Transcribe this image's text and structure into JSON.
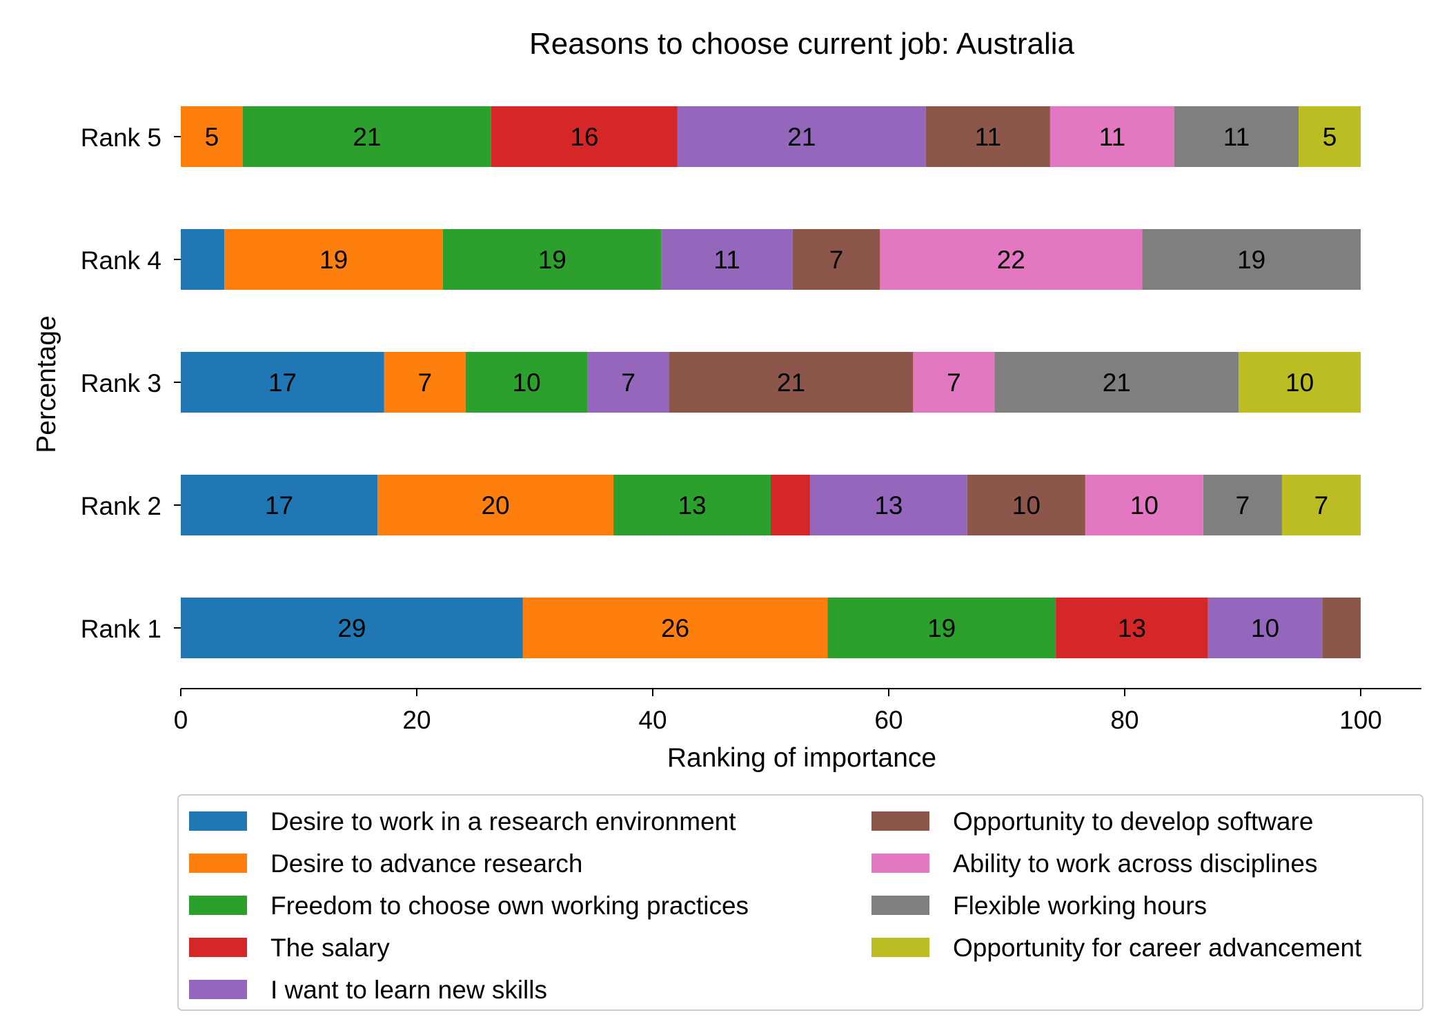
{
  "chart_data": {
    "type": "bar",
    "orientation": "horizontal",
    "stacked": true,
    "title": "Reasons to choose current job: Australia",
    "xlabel": "Ranking of importance",
    "ylabel": "Percentage",
    "xlim": [
      0,
      105
    ],
    "xticks": [
      "0",
      "20",
      "40",
      "60",
      "80",
      "100"
    ],
    "categories": [
      "Rank 1",
      "Rank 2",
      "Rank 3",
      "Rank 4",
      "Rank 5"
    ],
    "grid": false,
    "legend_position": "below",
    "series": [
      {
        "name": "Desire to work in a research environment",
        "color": "#1f77b4",
        "values": [
          29,
          16.67,
          17.24,
          3.7,
          0
        ]
      },
      {
        "name": "Desire to advance research",
        "color": "#ff7f0e",
        "values": [
          25.81,
          20,
          6.9,
          18.52,
          5.26
        ]
      },
      {
        "name": "Freedom to choose own working practices",
        "color": "#2ca02c",
        "values": [
          19.35,
          13.33,
          10.34,
          18.52,
          21.05
        ]
      },
      {
        "name": "The salary",
        "color": "#d62728",
        "values": [
          12.9,
          3.33,
          0,
          0,
          15.79
        ]
      },
      {
        "name": "I want to learn new skills",
        "color": "#9467bd",
        "values": [
          9.68,
          13.33,
          6.9,
          11.11,
          21.05
        ]
      },
      {
        "name": "Opportunity to develop software",
        "color": "#8c564b",
        "values": [
          3.26,
          10,
          20.69,
          7.41,
          10.53
        ]
      },
      {
        "name": "Ability to work across disciplines",
        "color": "#e377c2",
        "values": [
          0,
          10,
          6.9,
          22.22,
          10.53
        ]
      },
      {
        "name": "Flexible working hours",
        "color": "#7f7f7f",
        "values": [
          0,
          6.67,
          20.69,
          18.52,
          10.53
        ]
      },
      {
        "name": "Opportunity for career advancement",
        "color": "#bcbd22",
        "values": [
          0,
          6.67,
          10.34,
          0,
          5.26
        ]
      }
    ],
    "data_labels": [
      [
        "29",
        "26",
        "19",
        "13",
        "10",
        "",
        "",
        "",
        ""
      ],
      [
        "17",
        "20",
        "13",
        "",
        "13",
        "10",
        "10",
        "7",
        "7"
      ],
      [
        "17",
        "7",
        "10",
        "",
        "7",
        "21",
        "7",
        "21",
        "10"
      ],
      [
        "",
        "19",
        "19",
        "",
        "11",
        "7",
        "22",
        "19",
        ""
      ],
      [
        "",
        "5",
        "21",
        "16",
        "21",
        "11",
        "11",
        "11",
        "5"
      ]
    ]
  }
}
